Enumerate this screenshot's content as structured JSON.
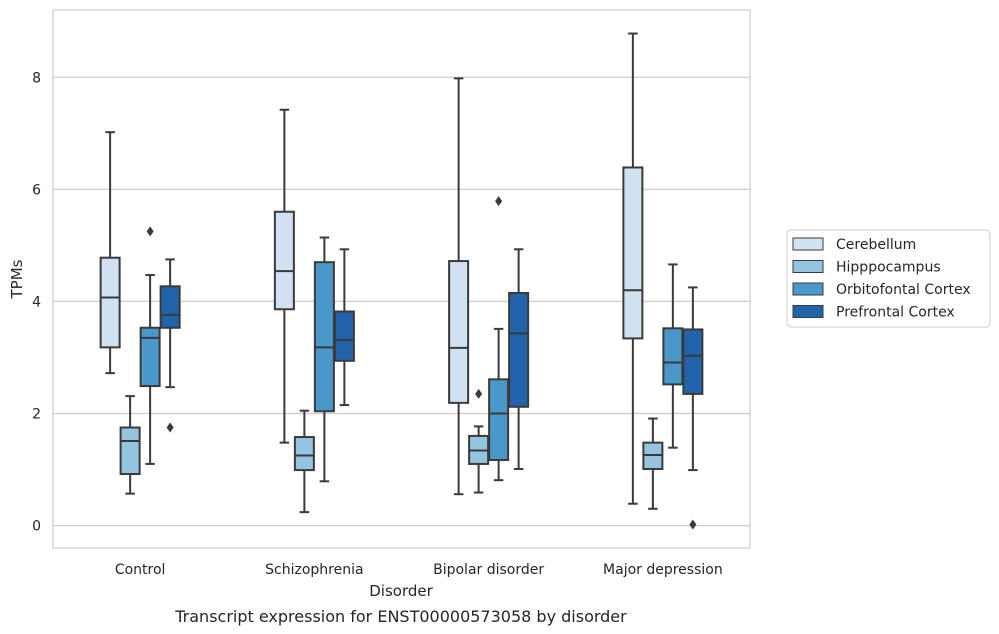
{
  "caption": "Transcript expression for ENST00000573058 by disorder",
  "chart_data": {
    "type": "box",
    "xlabel": "Disorder",
    "ylabel": "TPMs",
    "ylim": [
      -0.4,
      9.2
    ],
    "yticks": [
      0,
      2,
      4,
      6,
      8
    ],
    "grid": "horizontal",
    "legend_position": "right",
    "categories": [
      "Control",
      "Schizophrenia",
      "Bipolar disorder",
      "Major depression"
    ],
    "series": [
      {
        "name": "Cerebellum",
        "color": "#d0e1f2",
        "boxes": [
          {
            "whisker_low": 2.72,
            "q1": 3.18,
            "median": 4.07,
            "q3": 4.78,
            "whisker_high": 7.02,
            "outliers": []
          },
          {
            "whisker_low": 1.48,
            "q1": 3.86,
            "median": 4.54,
            "q3": 5.6,
            "whisker_high": 7.42,
            "outliers": []
          },
          {
            "whisker_low": 0.56,
            "q1": 2.19,
            "median": 3.17,
            "q3": 4.72,
            "whisker_high": 7.98,
            "outliers": []
          },
          {
            "whisker_low": 0.39,
            "q1": 3.34,
            "median": 4.2,
            "q3": 6.39,
            "whisker_high": 8.78,
            "outliers": []
          }
        ]
      },
      {
        "name": "Hipppocampus",
        "color": "#94c4df",
        "boxes": [
          {
            "whisker_low": 0.57,
            "q1": 0.92,
            "median": 1.51,
            "q3": 1.75,
            "whisker_high": 2.31,
            "outliers": []
          },
          {
            "whisker_low": 0.24,
            "q1": 0.99,
            "median": 1.25,
            "q3": 1.58,
            "whisker_high": 2.05,
            "outliers": []
          },
          {
            "whisker_low": 0.59,
            "q1": 1.1,
            "median": 1.34,
            "q3": 1.6,
            "whisker_high": 1.77,
            "outliers": [
              2.35
            ]
          },
          {
            "whisker_low": 0.3,
            "q1": 1.01,
            "median": 1.26,
            "q3": 1.48,
            "whisker_high": 1.91,
            "outliers": []
          }
        ]
      },
      {
        "name": "Orbitofontal Cortex",
        "color": "#4a98c9",
        "boxes": [
          {
            "whisker_low": 1.1,
            "q1": 2.49,
            "median": 3.35,
            "q3": 3.53,
            "whisker_high": 4.47,
            "outliers": [
              5.25
            ]
          },
          {
            "whisker_low": 0.79,
            "q1": 2.04,
            "median": 3.18,
            "q3": 4.7,
            "whisker_high": 5.14,
            "outliers": []
          },
          {
            "whisker_low": 0.81,
            "q1": 1.17,
            "median": 2.0,
            "q3": 2.61,
            "whisker_high": 3.51,
            "outliers": [
              5.79
            ]
          },
          {
            "whisker_low": 1.39,
            "q1": 2.52,
            "median": 2.91,
            "q3": 3.52,
            "whisker_high": 4.66,
            "outliers": []
          }
        ]
      },
      {
        "name": "Prefrontal Cortex",
        "color": "#2164ab",
        "boxes": [
          {
            "whisker_low": 2.47,
            "q1": 3.53,
            "median": 3.76,
            "q3": 4.27,
            "whisker_high": 4.75,
            "outliers": [
              1.75
            ]
          },
          {
            "whisker_low": 2.15,
            "q1": 2.94,
            "median": 3.31,
            "q3": 3.82,
            "whisker_high": 4.93,
            "outliers": []
          },
          {
            "whisker_low": 1.01,
            "q1": 2.12,
            "median": 3.43,
            "q3": 4.15,
            "whisker_high": 4.93,
            "outliers": []
          },
          {
            "whisker_low": 0.99,
            "q1": 2.35,
            "median": 3.03,
            "q3": 3.5,
            "whisker_high": 4.25,
            "outliers": [
              0.02
            ]
          }
        ]
      }
    ]
  }
}
